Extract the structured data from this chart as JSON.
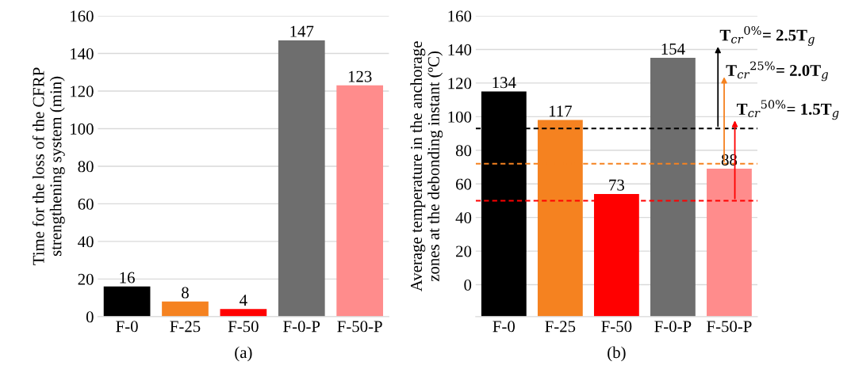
{
  "chart_data": [
    {
      "type": "bar",
      "xlabel": "(a)",
      "ylabel": "Time for the loss of the CFRP\nstrengthening system (min)",
      "categories": [
        "F-0",
        "F-25",
        "F-50",
        "F-0-P",
        "F-50-P"
      ],
      "values": [
        16,
        8,
        4,
        147,
        123
      ],
      "colors": [
        "#000000",
        "#f58220",
        "#ff0000",
        "#6e6e6e",
        "#ff8c8c"
      ],
      "ylim": [
        0,
        160
      ],
      "yticks": [
        0,
        20,
        40,
        60,
        80,
        100,
        120,
        140,
        160
      ],
      "grid": "y",
      "data_labels": true
    },
    {
      "type": "bar",
      "xlabel": "(b)",
      "ylabel": "Average temperature in the anchorage\nzones at the debonding instant (ºC)",
      "categories": [
        "F-0",
        "F-25",
        "F-50",
        "F-0-P",
        "F-50-P"
      ],
      "values": [
        134,
        117,
        73,
        154,
        88
      ],
      "base": [
        -19,
        -19,
        -19,
        -19,
        -19
      ],
      "colors": [
        "#000000",
        "#f58220",
        "#ff0000",
        "#6e6e6e",
        "#ff8c8c"
      ],
      "ylim": [
        -19,
        160
      ],
      "yticks": [
        0,
        20,
        40,
        60,
        80,
        100,
        120,
        140,
        160
      ],
      "grid": "y",
      "data_labels": true,
      "ref_lines": [
        {
          "axis": "y",
          "value": 93,
          "color": "#000000",
          "line_style": "dashed"
        },
        {
          "axis": "y",
          "value": 72,
          "color": "#f58220",
          "line_style": "dashed"
        },
        {
          "axis": "y",
          "value": 50,
          "color": "#ff0000",
          "line_style": "dashed"
        }
      ],
      "annotations": [
        "T$_{cr}$$^{0%}$= 2.5T$_{g}$",
        "T$_{cr}$$^{25%}$= 2.0T$_{g}$",
        "T$_{cr}$$^{50%}$= 1.5T$_{g}$"
      ]
    }
  ]
}
